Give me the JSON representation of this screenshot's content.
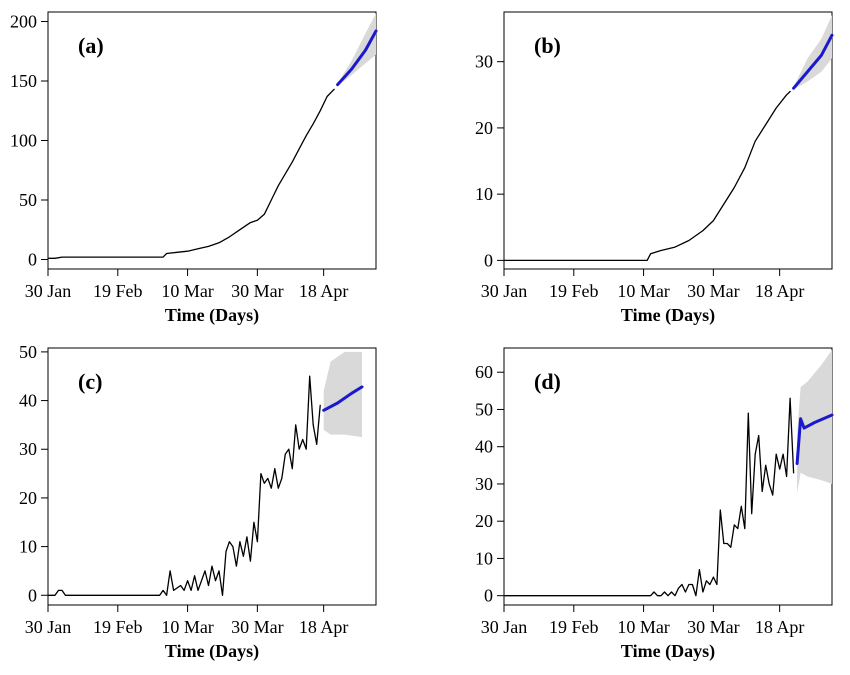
{
  "chart_data": [
    {
      "type": "line",
      "panel_label": "(a)",
      "xlabel": "Time (Days)",
      "ylabel": "",
      "x_ticks": [
        "30 Jan",
        "19 Feb",
        "10 Mar",
        "30 Mar",
        "18 Apr"
      ],
      "xlim": [
        "2020-01-30",
        "2020-05-03"
      ],
      "ylim": [
        -8,
        208
      ],
      "y_ticks": [
        0,
        50,
        100,
        150,
        200
      ],
      "series": [
        {
          "role": "observed",
          "color": "#000000",
          "points": [
            [
              "2020-01-30",
              1
            ],
            [
              "2020-02-01",
              1
            ],
            [
              "2020-02-03",
              2
            ],
            [
              "2020-02-10",
              2
            ],
            [
              "2020-02-20",
              2
            ],
            [
              "2020-03-01",
              2
            ],
            [
              "2020-03-03",
              2
            ],
            [
              "2020-03-04",
              5
            ],
            [
              "2020-03-07",
              6
            ],
            [
              "2020-03-10",
              7
            ],
            [
              "2020-03-13",
              9
            ],
            [
              "2020-03-16",
              11
            ],
            [
              "2020-03-19",
              14
            ],
            [
              "2020-03-22",
              19
            ],
            [
              "2020-03-25",
              25
            ],
            [
              "2020-03-28",
              31
            ],
            [
              "2020-03-30",
              33
            ],
            [
              "2020-04-01",
              38
            ],
            [
              "2020-04-03",
              50
            ],
            [
              "2020-04-05",
              62
            ],
            [
              "2020-04-07",
              72
            ],
            [
              "2020-04-09",
              82
            ],
            [
              "2020-04-11",
              93
            ],
            [
              "2020-04-13",
              104
            ],
            [
              "2020-04-15",
              114
            ],
            [
              "2020-04-17",
              125
            ],
            [
              "2020-04-19",
              137
            ],
            [
              "2020-04-21",
              143
            ]
          ]
        },
        {
          "role": "forecast",
          "color": "#1a1acc",
          "points": [
            [
              "2020-04-22",
              147
            ],
            [
              "2020-04-26",
              160
            ],
            [
              "2020-04-30",
              176
            ],
            [
              "2020-05-03",
              192
            ]
          ]
        }
      ],
      "band": {
        "color": "#d9d9d9",
        "points": [
          [
            "2020-04-22",
            146,
            148
          ],
          [
            "2020-04-26",
            155,
            167
          ],
          [
            "2020-04-30",
            165,
            190
          ],
          [
            "2020-05-03",
            172,
            207
          ]
        ]
      }
    },
    {
      "type": "line",
      "panel_label": "(b)",
      "xlabel": "Time (Days)",
      "ylabel": "",
      "x_ticks": [
        "30 Jan",
        "19 Feb",
        "10 Mar",
        "30 Mar",
        "18 Apr"
      ],
      "xlim": [
        "2020-01-30",
        "2020-05-03"
      ],
      "ylim": [
        -1.3,
        37.5
      ],
      "y_ticks": [
        0,
        10,
        20,
        30
      ],
      "series": [
        {
          "role": "observed",
          "color": "#000000",
          "points": [
            [
              "2020-01-30",
              0
            ],
            [
              "2020-02-20",
              0
            ],
            [
              "2020-03-11",
              0
            ],
            [
              "2020-03-12",
              1
            ],
            [
              "2020-03-15",
              1.5
            ],
            [
              "2020-03-19",
              2
            ],
            [
              "2020-03-23",
              3
            ],
            [
              "2020-03-27",
              4.5
            ],
            [
              "2020-03-30",
              6
            ],
            [
              "2020-04-02",
              8.5
            ],
            [
              "2020-04-05",
              11
            ],
            [
              "2020-04-08",
              14
            ],
            [
              "2020-04-11",
              18
            ],
            [
              "2020-04-14",
              20.5
            ],
            [
              "2020-04-17",
              23
            ],
            [
              "2020-04-20",
              25
            ],
            [
              "2020-04-21",
              25.5
            ]
          ]
        },
        {
          "role": "forecast",
          "color": "#1a1acc",
          "points": [
            [
              "2020-04-22",
              26
            ],
            [
              "2020-04-26",
              28.5
            ],
            [
              "2020-04-30",
              31
            ],
            [
              "2020-05-03",
              34
            ]
          ]
        }
      ],
      "band": {
        "color": "#d9d9d9",
        "points": [
          [
            "2020-04-22",
            25.8,
            26.2
          ],
          [
            "2020-04-26",
            27,
            30.5
          ],
          [
            "2020-04-30",
            28.5,
            33.5
          ],
          [
            "2020-05-03",
            30.5,
            37
          ]
        ]
      }
    },
    {
      "type": "line",
      "panel_label": "(c)",
      "xlabel": "Time (Days)",
      "ylabel": "",
      "x_ticks": [
        "30 Jan",
        "19 Feb",
        "10 Mar",
        "30 Mar",
        "18 Apr"
      ],
      "xlim": [
        "2020-01-30",
        "2020-05-03"
      ],
      "ylim": [
        -2,
        50.8
      ],
      "y_ticks": [
        0,
        10,
        20,
        30,
        40,
        50
      ],
      "series": [
        {
          "role": "observed",
          "color": "#000000",
          "points": [
            [
              "2020-01-30",
              0
            ],
            [
              "2020-02-01",
              0
            ],
            [
              "2020-02-02",
              1
            ],
            [
              "2020-02-03",
              1
            ],
            [
              "2020-02-04",
              0
            ],
            [
              "2020-02-20",
              0
            ],
            [
              "2020-03-02",
              0
            ],
            [
              "2020-03-03",
              1
            ],
            [
              "2020-03-04",
              0
            ],
            [
              "2020-03-05",
              5
            ],
            [
              "2020-03-06",
              1
            ],
            [
              "2020-03-08",
              2
            ],
            [
              "2020-03-09",
              1
            ],
            [
              "2020-03-10",
              3
            ],
            [
              "2020-03-11",
              1
            ],
            [
              "2020-03-12",
              4
            ],
            [
              "2020-03-13",
              1
            ],
            [
              "2020-03-14",
              3
            ],
            [
              "2020-03-15",
              5
            ],
            [
              "2020-03-16",
              2
            ],
            [
              "2020-03-17",
              6
            ],
            [
              "2020-03-18",
              3
            ],
            [
              "2020-03-19",
              5
            ],
            [
              "2020-03-20",
              0
            ],
            [
              "2020-03-21",
              9
            ],
            [
              "2020-03-22",
              11
            ],
            [
              "2020-03-23",
              10
            ],
            [
              "2020-03-24",
              6
            ],
            [
              "2020-03-25",
              11
            ],
            [
              "2020-03-26",
              8
            ],
            [
              "2020-03-27",
              12
            ],
            [
              "2020-03-28",
              7
            ],
            [
              "2020-03-29",
              15
            ],
            [
              "2020-03-30",
              11
            ],
            [
              "2020-03-31",
              25
            ],
            [
              "2020-04-01",
              23
            ],
            [
              "2020-04-02",
              24
            ],
            [
              "2020-04-03",
              22
            ],
            [
              "2020-04-04",
              26
            ],
            [
              "2020-04-05",
              22
            ],
            [
              "2020-04-06",
              24
            ],
            [
              "2020-04-07",
              29
            ],
            [
              "2020-04-08",
              30
            ],
            [
              "2020-04-09",
              26
            ],
            [
              "2020-04-10",
              35
            ],
            [
              "2020-04-11",
              30
            ],
            [
              "2020-04-12",
              32
            ],
            [
              "2020-04-13",
              30
            ],
            [
              "2020-04-14",
              45
            ],
            [
              "2020-04-15",
              35
            ],
            [
              "2020-04-16",
              31
            ],
            [
              "2020-04-17",
              39
            ]
          ]
        },
        {
          "role": "forecast",
          "color": "#1a1acc",
          "points": [
            [
              "2020-04-18",
              38
            ],
            [
              "2020-04-22",
              39.5
            ],
            [
              "2020-04-26",
              41.5
            ],
            [
              "2020-04-29",
              42.8
            ]
          ]
        }
      ],
      "band": {
        "color": "#d9d9d9",
        "points": [
          [
            "2020-04-18",
            34,
            42
          ],
          [
            "2020-04-20",
            33,
            48
          ],
          [
            "2020-04-24",
            33,
            50
          ],
          [
            "2020-04-29",
            32.5,
            50
          ]
        ]
      }
    },
    {
      "type": "line",
      "panel_label": "(d)",
      "xlabel": "Time (Days)",
      "ylabel": "",
      "x_ticks": [
        "30 Jan",
        "19 Feb",
        "10 Mar",
        "30 Mar",
        "18 Apr"
      ],
      "xlim": [
        "2020-01-30",
        "2020-05-03"
      ],
      "ylim": [
        -2.5,
        66.5
      ],
      "y_ticks": [
        0,
        10,
        20,
        30,
        40,
        50,
        60
      ],
      "series": [
        {
          "role": "observed",
          "color": "#000000",
          "points": [
            [
              "2020-01-30",
              0
            ],
            [
              "2020-02-20",
              0
            ],
            [
              "2020-03-12",
              0
            ],
            [
              "2020-03-13",
              1
            ],
            [
              "2020-03-14",
              0
            ],
            [
              "2020-03-15",
              0
            ],
            [
              "2020-03-16",
              1
            ],
            [
              "2020-03-17",
              0
            ],
            [
              "2020-03-18",
              1
            ],
            [
              "2020-03-19",
              0
            ],
            [
              "2020-03-20",
              2
            ],
            [
              "2020-03-21",
              3
            ],
            [
              "2020-03-22",
              1
            ],
            [
              "2020-03-23",
              3
            ],
            [
              "2020-03-24",
              3
            ],
            [
              "2020-03-25",
              0
            ],
            [
              "2020-03-26",
              7
            ],
            [
              "2020-03-27",
              1
            ],
            [
              "2020-03-28",
              4
            ],
            [
              "2020-03-29",
              3
            ],
            [
              "2020-03-30",
              5
            ],
            [
              "2020-03-31",
              3
            ],
            [
              "2020-04-01",
              23
            ],
            [
              "2020-04-02",
              14
            ],
            [
              "2020-04-03",
              14
            ],
            [
              "2020-04-04",
              13
            ],
            [
              "2020-04-05",
              19
            ],
            [
              "2020-04-06",
              18
            ],
            [
              "2020-04-07",
              24
            ],
            [
              "2020-04-08",
              18
            ],
            [
              "2020-04-09",
              49
            ],
            [
              "2020-04-10",
              22
            ],
            [
              "2020-04-11",
              38
            ],
            [
              "2020-04-12",
              43
            ],
            [
              "2020-04-13",
              28
            ],
            [
              "2020-04-14",
              35
            ],
            [
              "2020-04-15",
              30
            ],
            [
              "2020-04-16",
              27
            ],
            [
              "2020-04-17",
              38
            ],
            [
              "2020-04-18",
              34
            ],
            [
              "2020-04-19",
              38
            ],
            [
              "2020-04-20",
              32
            ],
            [
              "2020-04-21",
              53
            ],
            [
              "2020-04-22",
              33
            ]
          ]
        },
        {
          "role": "forecast",
          "color": "#1a1acc",
          "points": [
            [
              "2020-04-23",
              35.5
            ],
            [
              "2020-04-24",
              47.5
            ],
            [
              "2020-04-25",
              45
            ],
            [
              "2020-04-28",
              46.5
            ],
            [
              "2020-05-03",
              48.5
            ]
          ]
        }
      ],
      "band": {
        "color": "#d9d9d9",
        "points": [
          [
            "2020-04-23",
            27.5,
            43.5
          ],
          [
            "2020-04-24",
            33,
            56
          ],
          [
            "2020-04-26",
            32,
            57.5
          ],
          [
            "2020-04-30",
            31,
            62
          ],
          [
            "2020-05-03",
            30,
            66
          ]
        ]
      }
    }
  ]
}
